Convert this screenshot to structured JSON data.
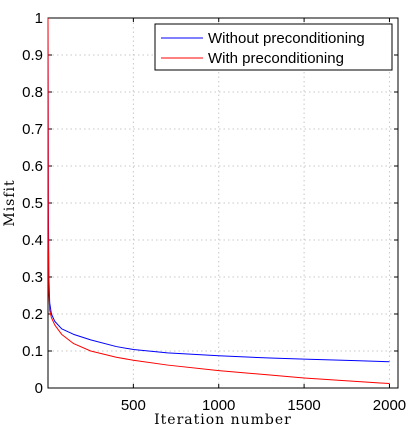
{
  "chart_data": {
    "type": "line",
    "title": "",
    "xlabel": "Iteration number",
    "ylabel": "Misfit",
    "xlim": [
      0,
      2050
    ],
    "ylim": [
      0,
      1
    ],
    "grid": true,
    "legend_position": "top-right",
    "x_ticks": [
      500,
      1000,
      1500,
      2000
    ],
    "x_tick_labels": [
      "500",
      "1000",
      "1500",
      "2000"
    ],
    "y_ticks": [
      0,
      0.1,
      0.2,
      0.3,
      0.4,
      0.5,
      0.6,
      0.7,
      0.8,
      0.9,
      1
    ],
    "y_tick_labels": [
      "0",
      "0.1",
      "0.2",
      "0.3",
      "0.4",
      "0.5",
      "0.6",
      "0.7",
      "0.8",
      "0.9",
      "1"
    ],
    "series": [
      {
        "name": "Without preconditioning",
        "color": "#0000ff",
        "x": [
          0,
          2,
          5,
          10,
          20,
          40,
          80,
          150,
          250,
          400,
          500,
          700,
          1000,
          1300,
          1500,
          1800,
          2000
        ],
        "y": [
          1.0,
          0.5,
          0.3,
          0.23,
          0.2,
          0.18,
          0.16,
          0.145,
          0.13,
          0.112,
          0.104,
          0.095,
          0.087,
          0.081,
          0.078,
          0.074,
          0.071
        ]
      },
      {
        "name": "With preconditioning",
        "color": "#ff0000",
        "x": [
          0,
          2,
          5,
          10,
          20,
          40,
          80,
          150,
          250,
          400,
          500,
          700,
          1000,
          1300,
          1500,
          1800,
          2000
        ],
        "y": [
          1.0,
          0.4,
          0.26,
          0.21,
          0.19,
          0.17,
          0.145,
          0.12,
          0.1,
          0.083,
          0.075,
          0.062,
          0.047,
          0.035,
          0.027,
          0.018,
          0.012
        ]
      }
    ]
  }
}
